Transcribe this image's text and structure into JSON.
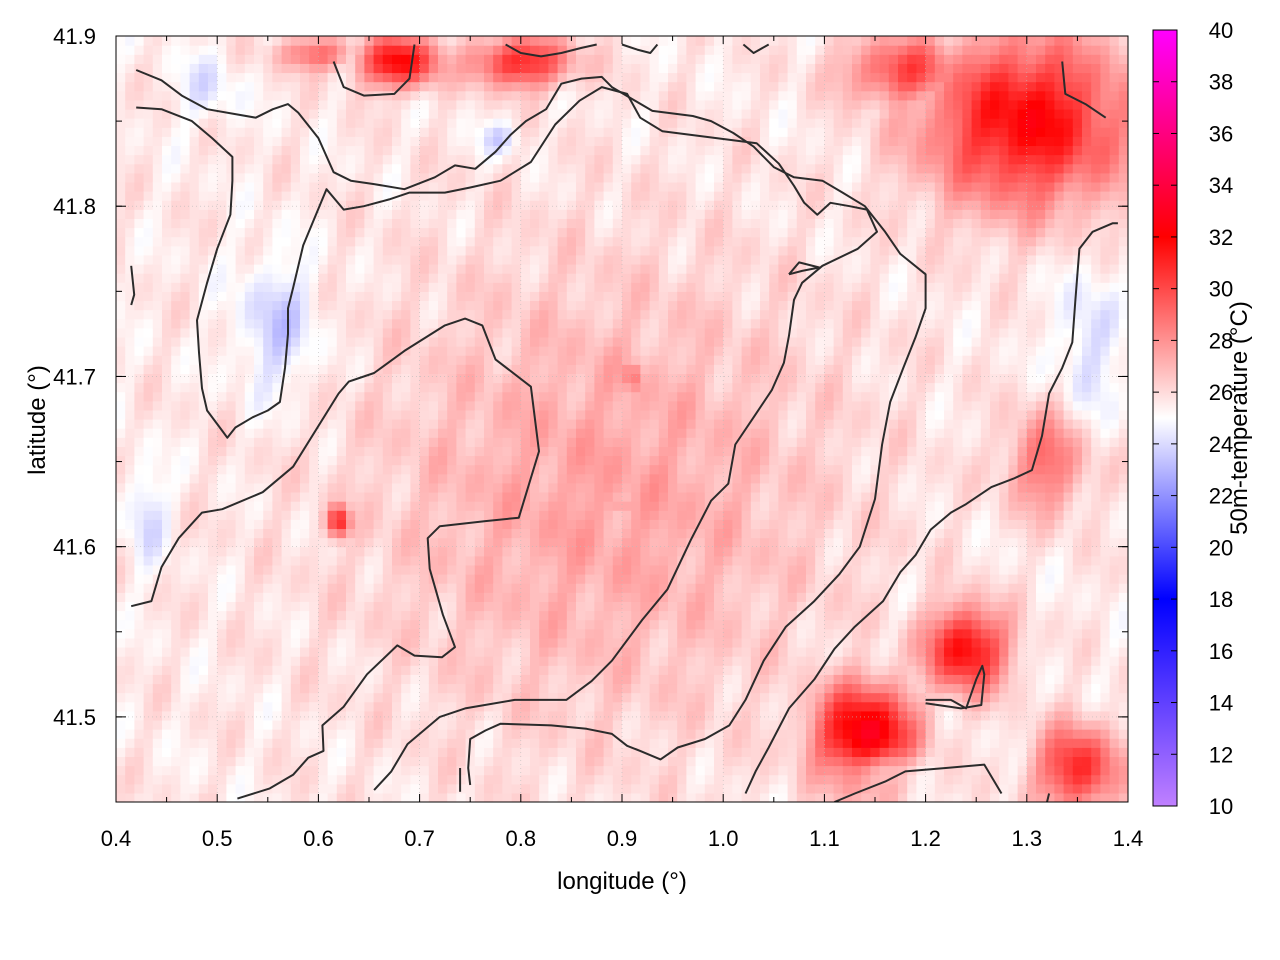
{
  "chart_data": {
    "type": "heatmap",
    "xlabel": "longitude (°)",
    "ylabel": "latitude (°)",
    "colorbar_label": "50m-temperature (°C)",
    "xlim": [
      0.4,
      1.4
    ],
    "ylim": [
      41.45,
      41.9
    ],
    "xticks": [
      "0.4",
      "0.5",
      "0.6",
      "0.7",
      "0.8",
      "0.9",
      "1.0",
      "1.1",
      "1.2",
      "1.3",
      "1.4"
    ],
    "yticks": [
      "41.5",
      "41.6",
      "41.7",
      "41.8",
      "41.9"
    ],
    "colorbar_range": [
      10,
      40
    ],
    "colorbar_ticks": [
      "10",
      "12",
      "14",
      "16",
      "18",
      "20",
      "22",
      "24",
      "26",
      "28",
      "30",
      "32",
      "34",
      "36",
      "38",
      "40"
    ],
    "colormap_stops": [
      {
        "value": 10,
        "color": "#c080ff"
      },
      {
        "value": 18,
        "color": "#0000ff"
      },
      {
        "value": 25,
        "color": "#ffffff"
      },
      {
        "value": 32,
        "color": "#ff0000"
      },
      {
        "value": 40,
        "color": "#ff00ff"
      }
    ],
    "grid": true,
    "hotspots": [
      {
        "lon": 1.3,
        "lat": 41.85,
        "temp": 32,
        "rx": 0.1,
        "ry": 0.05
      },
      {
        "lon": 1.18,
        "lat": 41.88,
        "temp": 30,
        "rx": 0.06,
        "ry": 0.02
      },
      {
        "lon": 0.68,
        "lat": 41.885,
        "temp": 32,
        "rx": 0.04,
        "ry": 0.015
      },
      {
        "lon": 0.8,
        "lat": 41.885,
        "temp": 31,
        "rx": 0.05,
        "ry": 0.015
      },
      {
        "lon": 0.6,
        "lat": 41.89,
        "temp": 29,
        "rx": 0.04,
        "ry": 0.01
      },
      {
        "lon": 1.24,
        "lat": 41.54,
        "temp": 32,
        "rx": 0.04,
        "ry": 0.025
      },
      {
        "lon": 1.14,
        "lat": 41.49,
        "temp": 33,
        "rx": 0.05,
        "ry": 0.03
      },
      {
        "lon": 1.35,
        "lat": 41.47,
        "temp": 31,
        "rx": 0.04,
        "ry": 0.025
      },
      {
        "lon": 0.62,
        "lat": 41.615,
        "temp": 31,
        "rx": 0.012,
        "ry": 0.01
      },
      {
        "lon": 0.91,
        "lat": 41.7,
        "temp": 29,
        "rx": 0.01,
        "ry": 0.012
      },
      {
        "lon": 0.9,
        "lat": 41.625,
        "temp": 29,
        "rx": 0.008,
        "ry": 0.008
      },
      {
        "lon": 1.32,
        "lat": 41.65,
        "temp": 29,
        "rx": 0.04,
        "ry": 0.03
      }
    ],
    "coolspots": [
      {
        "lon": 0.56,
        "lat": 41.73,
        "temp": 23.5,
        "rx": 0.04,
        "ry": 0.04
      },
      {
        "lon": 0.78,
        "lat": 41.84,
        "temp": 23.8,
        "rx": 0.02,
        "ry": 0.01
      },
      {
        "lon": 1.36,
        "lat": 41.72,
        "temp": 24,
        "rx": 0.03,
        "ry": 0.05
      },
      {
        "lon": 1.16,
        "lat": 41.47,
        "temp": 23.5,
        "rx": 0.04,
        "ry": 0.01
      },
      {
        "lon": 0.43,
        "lat": 41.62,
        "temp": 24,
        "rx": 0.02,
        "ry": 0.03
      },
      {
        "lon": 0.49,
        "lat": 41.87,
        "temp": 24.3,
        "rx": 0.03,
        "ry": 0.02
      }
    ],
    "warm_core": {
      "lon": 0.88,
      "lat": 41.63,
      "temp": 27.5,
      "rx": 0.22,
      "ry": 0.13
    },
    "contours": [
      [
        [
          0.415,
          41.565
        ],
        [
          0.435,
          41.568
        ],
        [
          0.445,
          41.588
        ],
        [
          0.462,
          41.605
        ],
        [
          0.485,
          41.62
        ],
        [
          0.505,
          41.622
        ],
        [
          0.545,
          41.632
        ],
        [
          0.575,
          41.647
        ],
        [
          0.62,
          41.69
        ],
        [
          0.63,
          41.697
        ],
        [
          0.655,
          41.702
        ],
        [
          0.685,
          41.715
        ],
        [
          0.725,
          41.73
        ],
        [
          0.745,
          41.734
        ],
        [
          0.762,
          41.73
        ],
        [
          0.775,
          41.71
        ],
        [
          0.81,
          41.694
        ],
        [
          0.818,
          41.656
        ],
        [
          0.798,
          41.617
        ],
        [
          0.765,
          41.615
        ],
        [
          0.72,
          41.612
        ],
        [
          0.708,
          41.605
        ],
        [
          0.71,
          41.587
        ],
        [
          0.723,
          41.56
        ],
        [
          0.735,
          41.541
        ],
        [
          0.722,
          41.535
        ],
        [
          0.695,
          41.536
        ],
        [
          0.678,
          41.542
        ],
        [
          0.648,
          41.525
        ],
        [
          0.625,
          41.506
        ],
        [
          0.604,
          41.495
        ],
        [
          0.605,
          41.48
        ],
        [
          0.59,
          41.476
        ],
        [
          0.575,
          41.466
        ],
        [
          0.552,
          41.458
        ],
        [
          0.52,
          41.452
        ]
      ],
      [
        [
          0.655,
          41.457
        ],
        [
          0.672,
          41.468
        ],
        [
          0.688,
          41.484
        ],
        [
          0.72,
          41.5
        ],
        [
          0.745,
          41.505
        ],
        [
          0.794,
          41.51
        ],
        [
          0.845,
          41.51
        ],
        [
          0.87,
          41.521
        ],
        [
          0.89,
          41.533
        ],
        [
          0.92,
          41.557
        ],
        [
          0.945,
          41.575
        ],
        [
          0.968,
          41.604
        ],
        [
          0.988,
          41.627
        ],
        [
          1.005,
          41.637
        ],
        [
          1.012,
          41.66
        ],
        [
          1.03,
          41.676
        ],
        [
          1.048,
          41.692
        ],
        [
          1.06,
          41.708
        ],
        [
          1.065,
          41.724
        ],
        [
          1.07,
          41.745
        ],
        [
          1.078,
          41.755
        ],
        [
          1.098,
          41.765
        ],
        [
          1.133,
          41.775
        ],
        [
          1.152,
          41.785
        ],
        [
          1.142,
          41.798
        ],
        [
          1.125,
          41.8
        ],
        [
          1.106,
          41.802
        ],
        [
          1.093,
          41.795
        ],
        [
          1.08,
          41.802
        ],
        [
          1.07,
          41.812
        ],
        [
          1.055,
          41.825
        ],
        [
          1.033,
          41.837
        ],
        [
          0.94,
          41.844
        ],
        [
          0.918,
          41.852
        ],
        [
          0.905,
          41.866
        ],
        [
          0.88,
          41.87
        ],
        [
          0.858,
          41.862
        ],
        [
          0.834,
          41.848
        ],
        [
          0.81,
          41.826
        ],
        [
          0.78,
          41.815
        ],
        [
          0.75,
          41.811
        ],
        [
          0.725,
          41.808
        ],
        [
          0.69,
          41.808
        ],
        [
          0.67,
          41.804
        ],
        [
          0.645,
          41.8
        ],
        [
          0.625,
          41.798
        ],
        [
          0.608,
          41.81
        ],
        [
          0.585,
          41.777
        ],
        [
          0.575,
          41.752
        ],
        [
          0.57,
          41.74
        ],
        [
          0.57,
          41.725
        ],
        [
          0.567,
          41.705
        ],
        [
          0.562,
          41.685
        ],
        [
          0.55,
          41.68
        ],
        [
          0.535,
          41.676
        ],
        [
          0.518,
          41.67
        ],
        [
          0.51,
          41.664
        ],
        [
          0.505,
          41.668
        ],
        [
          0.49,
          41.68
        ],
        [
          0.485,
          41.693
        ],
        [
          0.482,
          41.714
        ],
        [
          0.48,
          41.733
        ],
        [
          0.49,
          41.755
        ],
        [
          0.5,
          41.775
        ],
        [
          0.513,
          41.795
        ],
        [
          0.515,
          41.815
        ],
        [
          0.515,
          41.829
        ],
        [
          0.495,
          41.84
        ],
        [
          0.475,
          41.85
        ],
        [
          0.445,
          41.857
        ],
        [
          0.42,
          41.858
        ]
      ],
      [
        [
          0.415,
          41.765
        ],
        [
          0.418,
          41.748
        ],
        [
          0.415,
          41.742
        ]
      ],
      [
        [
          0.42,
          41.88
        ],
        [
          0.445,
          41.874
        ],
        [
          0.465,
          41.865
        ],
        [
          0.49,
          41.857
        ],
        [
          0.538,
          41.852
        ],
        [
          0.555,
          41.857
        ],
        [
          0.57,
          41.86
        ],
        [
          0.58,
          41.855
        ],
        [
          0.6,
          41.84
        ],
        [
          0.615,
          41.82
        ],
        [
          0.632,
          41.815
        ],
        [
          0.655,
          41.813
        ],
        [
          0.685,
          41.81
        ],
        [
          0.715,
          41.817
        ],
        [
          0.735,
          41.824
        ],
        [
          0.755,
          41.822
        ],
        [
          0.775,
          41.832
        ],
        [
          0.79,
          41.842
        ],
        [
          0.805,
          41.85
        ],
        [
          0.825,
          41.857
        ],
        [
          0.84,
          41.872
        ],
        [
          0.86,
          41.875
        ],
        [
          0.88,
          41.876
        ],
        [
          0.89,
          41.87
        ],
        [
          0.91,
          41.863
        ],
        [
          0.93,
          41.856
        ],
        [
          0.97,
          41.853
        ],
        [
          0.988,
          41.85
        ],
        [
          1.01,
          41.843
        ],
        [
          1.03,
          41.835
        ],
        [
          1.05,
          41.823
        ],
        [
          1.07,
          41.817
        ],
        [
          1.098,
          41.815
        ],
        [
          1.118,
          41.808
        ],
        [
          1.14,
          41.8
        ],
        [
          1.16,
          41.785
        ],
        [
          1.175,
          41.772
        ],
        [
          1.2,
          41.76
        ],
        [
          1.2,
          41.74
        ],
        [
          1.19,
          41.723
        ],
        [
          1.178,
          41.705
        ],
        [
          1.165,
          41.685
        ],
        [
          1.157,
          41.66
        ],
        [
          1.15,
          41.628
        ],
        [
          1.135,
          41.6
        ],
        [
          1.115,
          41.584
        ],
        [
          1.09,
          41.568
        ],
        [
          1.062,
          41.553
        ],
        [
          1.04,
          41.533
        ],
        [
          1.022,
          41.51
        ],
        [
          1.006,
          41.495
        ],
        [
          0.982,
          41.487
        ],
        [
          0.955,
          41.482
        ],
        [
          0.938,
          41.475
        ],
        [
          0.918,
          41.48
        ],
        [
          0.905,
          41.483
        ],
        [
          0.89,
          41.49
        ],
        [
          0.865,
          41.493
        ],
        [
          0.83,
          41.495
        ],
        [
          0.78,
          41.496
        ],
        [
          0.765,
          41.492
        ],
        [
          0.75,
          41.487
        ],
        [
          0.748,
          41.47
        ],
        [
          0.75,
          41.46
        ]
      ],
      [
        [
          0.74,
          41.456
        ],
        [
          0.74,
          41.47
        ]
      ],
      [
        [
          0.615,
          41.885
        ],
        [
          0.625,
          41.87
        ],
        [
          0.645,
          41.865
        ],
        [
          0.675,
          41.866
        ],
        [
          0.69,
          41.875
        ],
        [
          0.695,
          41.895
        ]
      ],
      [
        [
          0.785,
          41.895
        ],
        [
          0.8,
          41.89
        ],
        [
          0.82,
          41.888
        ],
        [
          0.84,
          41.89
        ],
        [
          0.86,
          41.893
        ],
        [
          0.875,
          41.895
        ]
      ],
      [
        [
          0.9,
          41.895
        ],
        [
          0.915,
          41.892
        ],
        [
          0.928,
          41.89
        ],
        [
          0.935,
          41.895
        ]
      ],
      [
        [
          1.02,
          41.895
        ],
        [
          1.03,
          41.89
        ],
        [
          1.045,
          41.895
        ]
      ],
      [
        [
          1.022,
          41.455
        ],
        [
          1.032,
          41.468
        ],
        [
          1.045,
          41.482
        ],
        [
          1.065,
          41.505
        ],
        [
          1.09,
          41.522
        ],
        [
          1.11,
          41.54
        ],
        [
          1.13,
          41.553
        ],
        [
          1.158,
          41.568
        ],
        [
          1.175,
          41.585
        ],
        [
          1.19,
          41.595
        ],
        [
          1.205,
          41.61
        ],
        [
          1.225,
          41.62
        ],
        [
          1.24,
          41.625
        ],
        [
          1.265,
          41.635
        ],
        [
          1.287,
          41.64
        ],
        [
          1.305,
          41.645
        ],
        [
          1.315,
          41.665
        ],
        [
          1.322,
          41.69
        ],
        [
          1.335,
          41.705
        ],
        [
          1.345,
          41.72
        ],
        [
          1.348,
          41.745
        ],
        [
          1.352,
          41.775
        ],
        [
          1.365,
          41.785
        ],
        [
          1.385,
          41.79
        ],
        [
          1.39,
          41.79
        ]
      ],
      [
        [
          1.11,
          41.45
        ],
        [
          1.13,
          41.455
        ],
        [
          1.16,
          41.462
        ],
        [
          1.18,
          41.468
        ],
        [
          1.22,
          41.47
        ],
        [
          1.258,
          41.472
        ],
        [
          1.275,
          41.455
        ]
      ],
      [
        [
          1.2,
          41.508
        ],
        [
          1.235,
          41.505
        ],
        [
          1.255,
          41.507
        ],
        [
          1.258,
          41.525
        ],
        [
          1.256,
          41.53
        ],
        [
          1.25,
          41.522
        ],
        [
          1.24,
          41.505
        ],
        [
          1.225,
          41.51
        ],
        [
          1.2,
          41.51
        ]
      ],
      [
        [
          1.065,
          41.76
        ],
        [
          1.078,
          41.762
        ],
        [
          1.095,
          41.764
        ],
        [
          1.075,
          41.767
        ],
        [
          1.065,
          41.76
        ]
      ],
      [
        [
          1.335,
          41.885
        ],
        [
          1.338,
          41.866
        ],
        [
          1.358,
          41.86
        ],
        [
          1.378,
          41.852
        ]
      ],
      [
        [
          1.32,
          41.45
        ],
        [
          1.322,
          41.455
        ]
      ]
    ]
  }
}
